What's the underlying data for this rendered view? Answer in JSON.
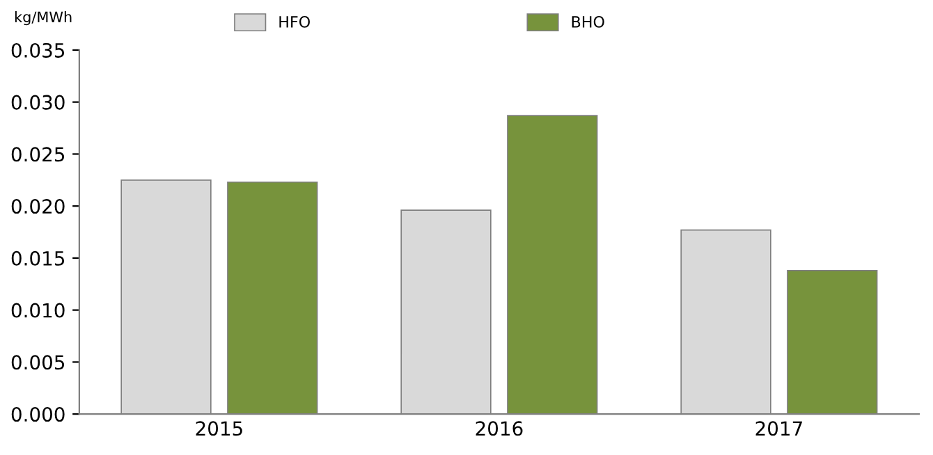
{
  "chart_data": {
    "type": "bar",
    "ylabel": "kg/MWh",
    "categories": [
      "2015",
      "2016",
      "2017"
    ],
    "series": [
      {
        "name": "HFO",
        "color": "#d9d9d9",
        "values": [
          0.0225,
          0.0196,
          0.0177
        ]
      },
      {
        "name": "BHO",
        "color": "#77933c",
        "values": [
          0.0223,
          0.0287,
          0.0138
        ]
      }
    ],
    "ylim": [
      0,
      0.035
    ],
    "yticks": [
      {
        "value": 0,
        "label": "0.000"
      },
      {
        "value": 0.005,
        "label": "0.005"
      },
      {
        "value": 0.01,
        "label": "0.010"
      },
      {
        "value": 0.015,
        "label": "0.015"
      },
      {
        "value": 0.02,
        "label": "0.020"
      },
      {
        "value": 0.025,
        "label": "0.025"
      },
      {
        "value": 0.03,
        "label": "0.030"
      },
      {
        "value": 0.035,
        "label": "0.035"
      }
    ],
    "grid": false,
    "legend": "top"
  }
}
